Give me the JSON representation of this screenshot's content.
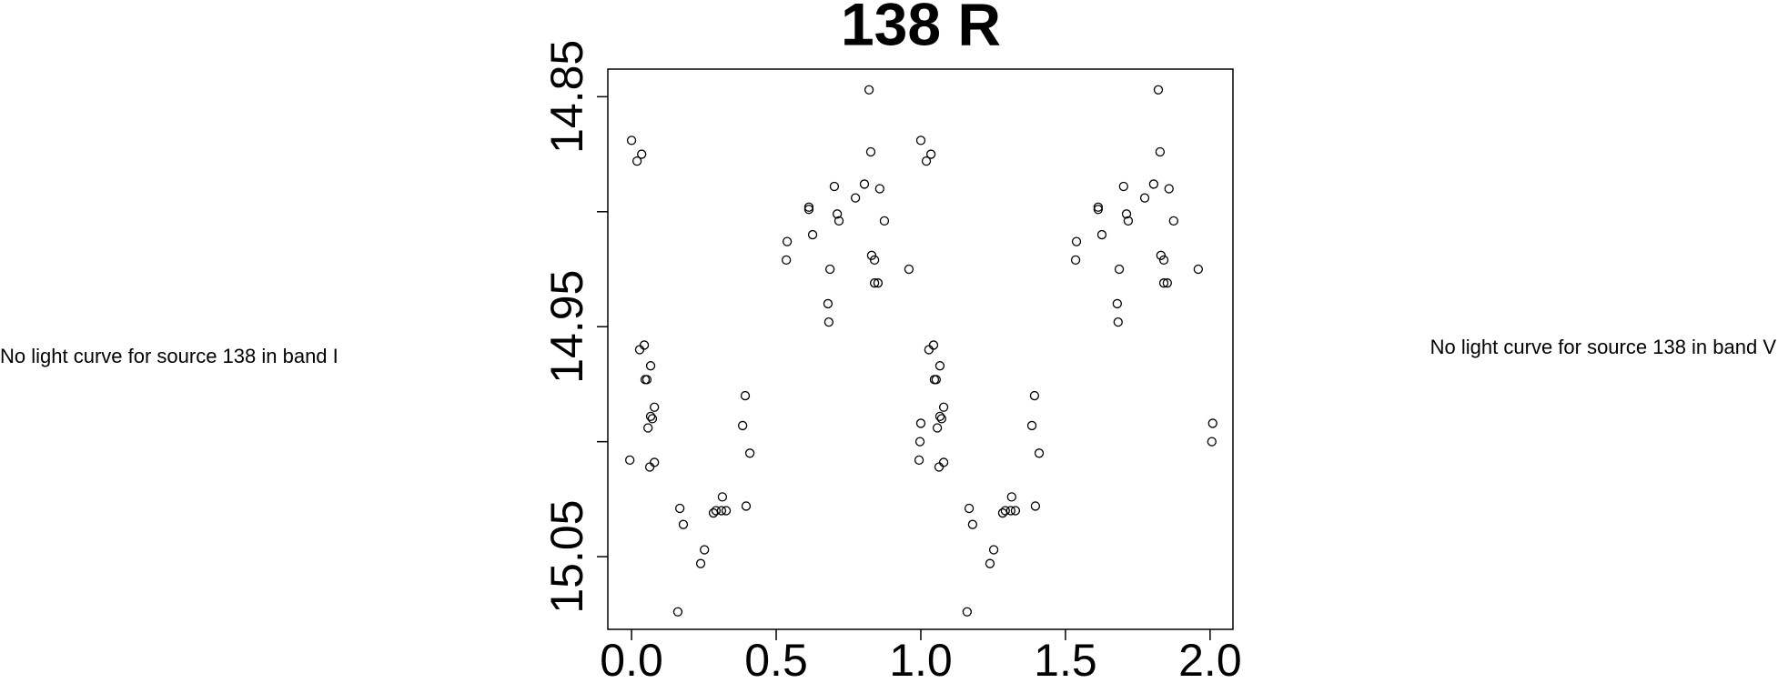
{
  "chart_data": {
    "type": "scatter",
    "title": "138 R",
    "x": [
      0.0,
      0.019,
      0.035,
      -0.006,
      0.028,
      0.044,
      0.047,
      0.053,
      0.066,
      0.057,
      0.072,
      0.066,
      0.079,
      0.063,
      0.079,
      0.167,
      0.179,
      0.239,
      0.252,
      0.16,
      0.283,
      0.292,
      0.311,
      0.314,
      0.327,
      0.384,
      0.393,
      0.396,
      0.409,
      0.538,
      0.535,
      0.613,
      0.613,
      0.626,
      0.679,
      0.682,
      0.686,
      0.701,
      0.711,
      0.717,
      0.774,
      0.805,
      0.821,
      0.827,
      0.83,
      0.84,
      0.84,
      0.852,
      0.858,
      0.874,
      0.959,
      1.0,
      0.997,
      1.0,
      1.019,
      1.035,
      0.994,
      1.028,
      1.044,
      1.047,
      1.053,
      1.066,
      1.057,
      1.072,
      1.066,
      1.079,
      1.063,
      1.079,
      1.167,
      1.179,
      1.239,
      1.252,
      1.16,
      1.283,
      1.292,
      1.311,
      1.314,
      1.327,
      1.384,
      1.393,
      1.396,
      1.409,
      1.538,
      1.535,
      1.613,
      1.613,
      1.626,
      1.679,
      1.682,
      1.686,
      1.701,
      1.711,
      1.717,
      1.774,
      1.805,
      1.821,
      1.827,
      1.83,
      1.84,
      1.84,
      1.852,
      1.858,
      1.874,
      1.959,
      2.009,
      2.006
    ],
    "values": [
      14.869,
      14.878,
      14.875,
      15.008,
      14.96,
      14.958,
      14.973,
      14.973,
      14.967,
      14.994,
      14.99,
      14.989,
      14.985,
      15.011,
      15.009,
      15.029,
      15.036,
      15.053,
      15.047,
      15.074,
      15.031,
      15.03,
      15.03,
      15.024,
      15.03,
      14.993,
      14.98,
      15.028,
      15.005,
      14.913,
      14.921,
      14.899,
      14.898,
      14.91,
      14.94,
      14.948,
      14.925,
      14.889,
      14.901,
      14.904,
      14.894,
      14.888,
      14.847,
      14.874,
      14.919,
      14.921,
      14.931,
      14.931,
      14.89,
      14.904,
      14.925,
      14.992,
      15.0,
      14.869,
      14.878,
      14.875,
      15.008,
      14.96,
      14.958,
      14.973,
      14.973,
      14.967,
      14.994,
      14.99,
      14.989,
      14.985,
      15.011,
      15.009,
      15.029,
      15.036,
      15.053,
      15.047,
      15.074,
      15.031,
      15.03,
      15.03,
      15.024,
      15.03,
      14.993,
      14.98,
      15.028,
      15.005,
      14.913,
      14.921,
      14.899,
      14.898,
      14.91,
      14.94,
      14.948,
      14.925,
      14.889,
      14.901,
      14.904,
      14.894,
      14.888,
      14.847,
      14.874,
      14.919,
      14.921,
      14.931,
      14.931,
      14.89,
      14.904,
      14.925,
      14.992,
      15.0
    ],
    "color": "#000000",
    "xlim": [
      -0.082,
      2.079
    ],
    "xticks": [
      {
        "value": 0,
        "label": "0.0"
      },
      0.5,
      {
        "value": 1,
        "label": "1.0"
      },
      1.5,
      {
        "value": 2,
        "label": "2.0"
      }
    ],
    "ylim": [
      15.0816,
      14.838
    ],
    "yticks": [
      14.85,
      14.95,
      15.05
    ],
    "yminor_ticks": [
      14.9,
      15.0
    ],
    "y_inverted": true,
    "grid": false
  },
  "left_text": "No light curve for source 138 in band I",
  "right_text": "No light curve for source 138 in band V"
}
